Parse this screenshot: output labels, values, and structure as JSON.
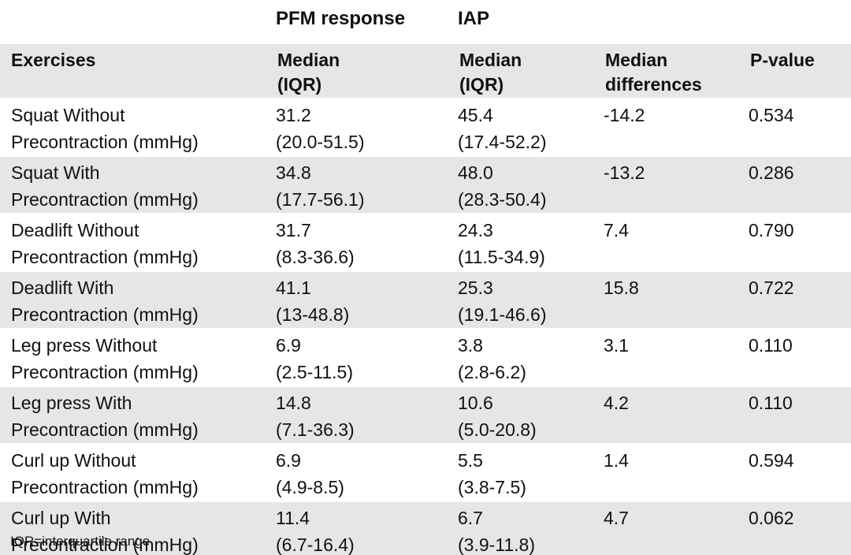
{
  "group_headers": {
    "pfm": "PFM response",
    "iap": "IAP"
  },
  "columns": {
    "exercises": "Exercises",
    "pfm_median": [
      "Median",
      "(IQR)"
    ],
    "iap_median": [
      "Median",
      "(IQR)"
    ],
    "median_diff": [
      "Median",
      "differences"
    ],
    "p_value": "P-value"
  },
  "rows": [
    {
      "exercise": [
        "Squat Without",
        "Precontraction (mmHg)"
      ],
      "pfm": [
        "31.2",
        "(20.0-51.5)"
      ],
      "iap": [
        "45.4",
        "(17.4-52.2)"
      ],
      "diff": "-14.2",
      "p": "0.534"
    },
    {
      "exercise": [
        "Squat With",
        "Precontraction (mmHg)"
      ],
      "pfm": [
        "34.8",
        "(17.7-56.1)"
      ],
      "iap": [
        "48.0",
        "(28.3-50.4)"
      ],
      "diff": "-13.2",
      "p": "0.286"
    },
    {
      "exercise": [
        "Deadlift Without",
        "Precontraction (mmHg)"
      ],
      "pfm": [
        "31.7",
        "(8.3-36.6)"
      ],
      "iap": [
        "24.3",
        "(11.5-34.9)"
      ],
      "diff": "7.4",
      "p": "0.790"
    },
    {
      "exercise": [
        "Deadlift With",
        "Precontraction (mmHg)"
      ],
      "pfm": [
        "41.1",
        "(13-48.8)"
      ],
      "iap": [
        "25.3",
        "(19.1-46.6)"
      ],
      "diff": "15.8",
      "p": "0.722"
    },
    {
      "exercise": [
        "Leg press Without",
        "Precontraction (mmHg)"
      ],
      "pfm": [
        "6.9",
        "(2.5-11.5)"
      ],
      "iap": [
        "3.8",
        "(2.8-6.2)"
      ],
      "diff": "3.1",
      "p": "0.110"
    },
    {
      "exercise": [
        "Leg press With",
        "Precontraction (mmHg)"
      ],
      "pfm": [
        "14.8",
        "(7.1-36.3)"
      ],
      "iap": [
        "10.6",
        "(5.0-20.8)"
      ],
      "diff": "4.2",
      "p": "0.110"
    },
    {
      "exercise": [
        "Curl up Without",
        "Precontraction (mmHg)"
      ],
      "pfm": [
        "6.9",
        "(4.9-8.5)"
      ],
      "iap": [
        "5.5",
        "(3.8-7.5)"
      ],
      "diff": "1.4",
      "p": "0.594"
    },
    {
      "exercise": [
        "Curl up With",
        "Precontraction (mmHg)"
      ],
      "pfm": [
        "11.4",
        "(6.7-16.4)"
      ],
      "iap": [
        "6.7",
        "(3.9-11.8)"
      ],
      "diff": "4.7",
      "p": "0.062"
    }
  ],
  "footnote": "IQR=interquartile range",
  "colors": {
    "shade": "#e6e6e6",
    "background": "#ffffff",
    "text": "#111111"
  }
}
